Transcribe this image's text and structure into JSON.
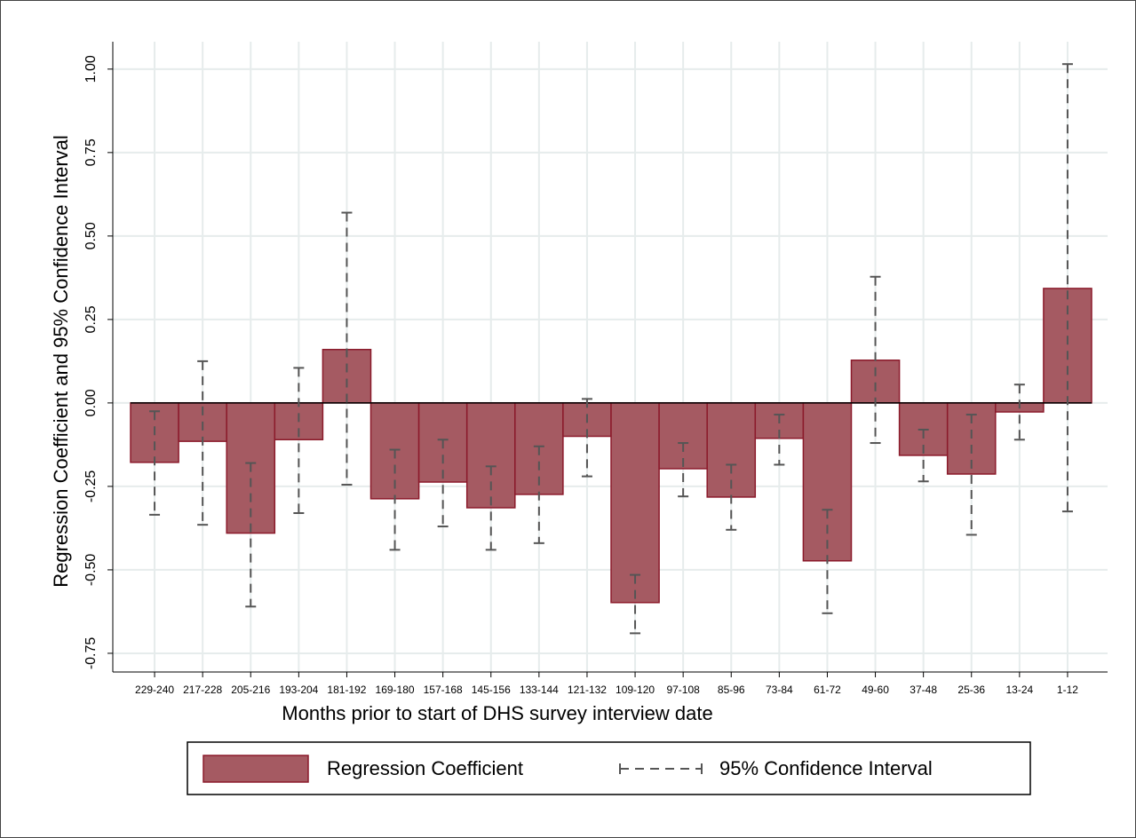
{
  "chart_data": {
    "type": "bar",
    "x_label": "Months prior to start of DHS survey interview date",
    "y_label": "Regression Coefficient and 95% Confidence Interval",
    "categories": [
      "229-240",
      "217-228",
      "205-216",
      "193-204",
      "181-192",
      "169-180",
      "157-168",
      "145-156",
      "133-144",
      "121-132",
      "109-120",
      "97-108",
      "85-96",
      "73-84",
      "61-72",
      "49-60",
      "37-48",
      "25-36",
      "13-24",
      "1-12"
    ],
    "series": [
      {
        "name": "Regression Coefficient",
        "color": "#a55a62",
        "values": [
          -0.178,
          -0.115,
          -0.39,
          -0.11,
          0.16,
          -0.287,
          -0.237,
          -0.314,
          -0.274,
          -0.1,
          -0.598,
          -0.197,
          -0.282,
          -0.106,
          -0.473,
          0.128,
          -0.157,
          -0.213,
          -0.027,
          0.343
        ]
      },
      {
        "name": "95% Confidence Interval",
        "color": "#555555",
        "lower": [
          -0.335,
          -0.365,
          -0.61,
          -0.33,
          -0.245,
          -0.44,
          -0.37,
          -0.44,
          -0.42,
          -0.22,
          -0.69,
          -0.28,
          -0.38,
          -0.185,
          -0.63,
          -0.12,
          -0.235,
          -0.395,
          -0.11,
          -0.325
        ],
        "upper": [
          -0.025,
          0.125,
          -0.18,
          0.105,
          0.57,
          -0.14,
          -0.11,
          -0.19,
          -0.13,
          0.012,
          -0.515,
          -0.12,
          -0.185,
          -0.035,
          -0.32,
          0.378,
          -0.08,
          -0.035,
          0.055,
          1.015
        ]
      }
    ],
    "ylim": [
      -0.806,
      1.082
    ],
    "yticks": [
      {
        "value": -0.75,
        "label": "-0.75"
      },
      {
        "value": -0.5,
        "label": "-0.50"
      },
      {
        "value": -0.25,
        "label": "-0.25"
      },
      {
        "value": 0,
        "label": "0.00"
      },
      {
        "value": 0.25,
        "label": "0.25"
      },
      {
        "value": 0.5,
        "label": "0.50"
      },
      {
        "value": 0.75,
        "label": "0.75"
      },
      {
        "value": 1,
        "label": "1.00"
      }
    ],
    "grid": true,
    "legend": "bottom"
  }
}
